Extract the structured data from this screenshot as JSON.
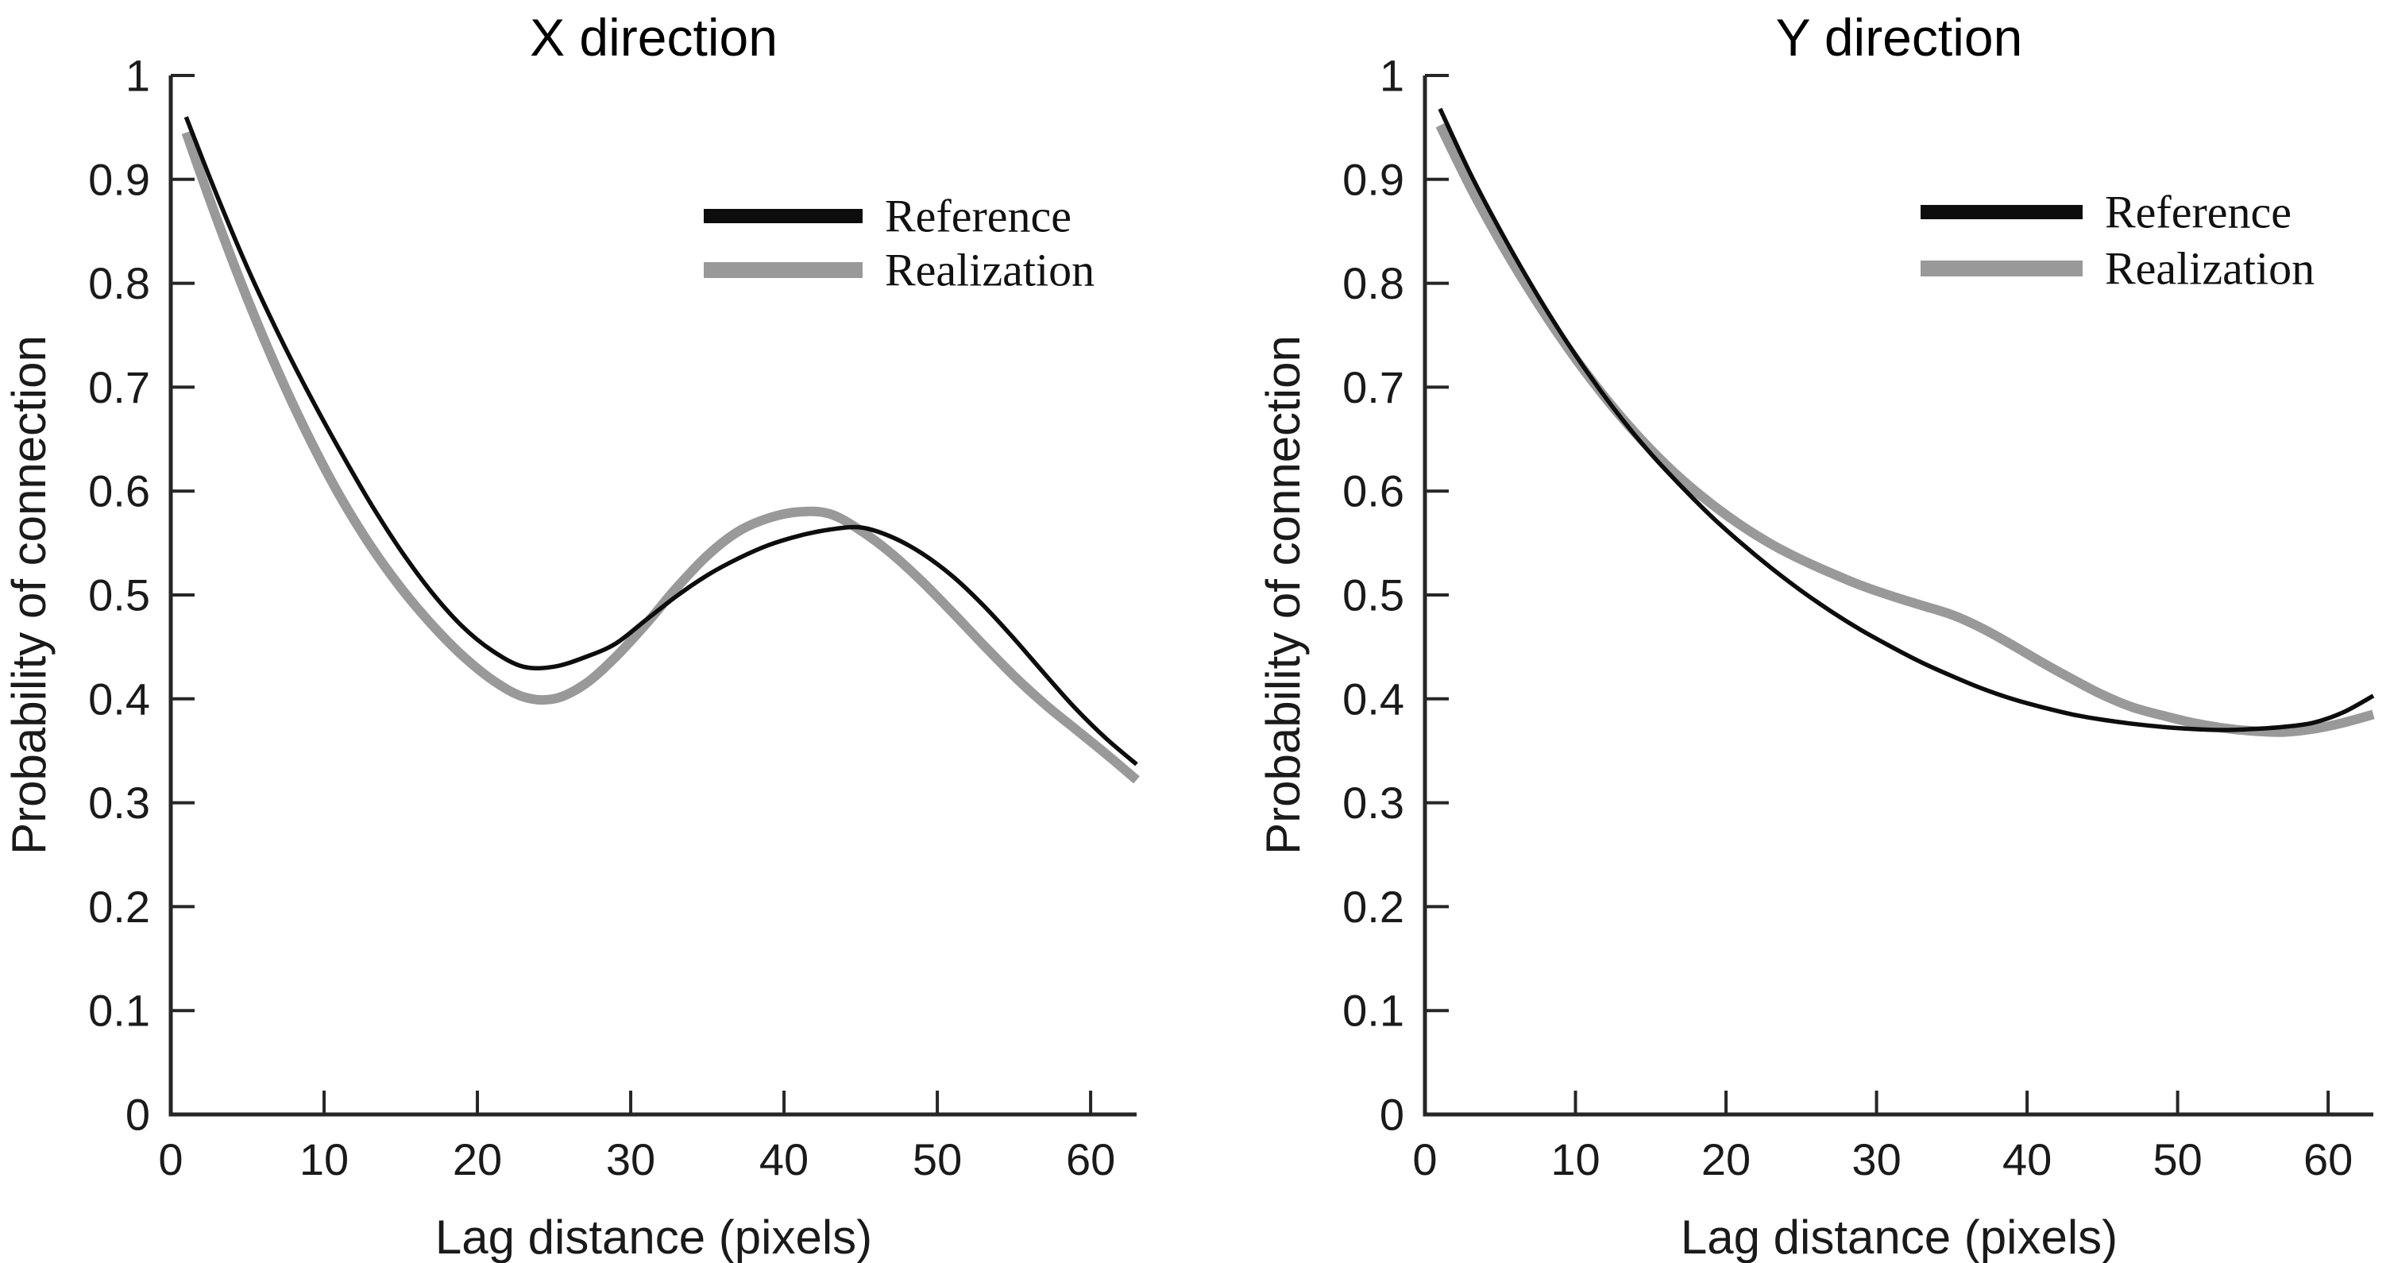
{
  "figure": {
    "background": "#ffffff",
    "axis_color": "#262626",
    "tick_label_color": "#1a1a1a"
  },
  "chart_data": [
    {
      "type": "line",
      "title": "X direction",
      "xlabel": "Lag distance (pixels)",
      "ylabel": "Probability of connection",
      "xlim": [
        0,
        63
      ],
      "ylim": [
        0,
        1
      ],
      "xticks": [
        0,
        10,
        20,
        30,
        40,
        50,
        60
      ],
      "yticks": [
        0,
        0.1,
        0.2,
        0.3,
        0.4,
        0.5,
        0.6,
        0.7,
        0.8,
        0.9,
        1
      ],
      "grid": false,
      "legend_position": "inside-upper-right",
      "series": [
        {
          "name": "Reference",
          "color": "#0d0d0d",
          "line_width": 5.5,
          "x": [
            1,
            3,
            5,
            7,
            9,
            11,
            13,
            15,
            17,
            19,
            21,
            23,
            25,
            27,
            29,
            31,
            33,
            35,
            37,
            39,
            41,
            43,
            45,
            47,
            49,
            51,
            53,
            55,
            57,
            59,
            61,
            63
          ],
          "y": [
            0.96,
            0.885,
            0.815,
            0.752,
            0.694,
            0.64,
            0.589,
            0.543,
            0.503,
            0.47,
            0.446,
            0.431,
            0.431,
            0.44,
            0.453,
            0.476,
            0.499,
            0.519,
            0.535,
            0.548,
            0.557,
            0.563,
            0.565,
            0.556,
            0.54,
            0.518,
            0.49,
            0.458,
            0.424,
            0.391,
            0.362,
            0.337
          ]
        },
        {
          "name": "Realization",
          "color": "#999999",
          "line_width": 12,
          "x": [
            1,
            3,
            5,
            7,
            9,
            11,
            13,
            15,
            17,
            19,
            21,
            23,
            25,
            27,
            29,
            31,
            33,
            35,
            37,
            39,
            41,
            43,
            45,
            47,
            49,
            51,
            53,
            55,
            57,
            59,
            61,
            63
          ],
          "y": [
            0.945,
            0.862,
            0.785,
            0.715,
            0.652,
            0.596,
            0.548,
            0.507,
            0.472,
            0.442,
            0.418,
            0.402,
            0.4,
            0.414,
            0.44,
            0.472,
            0.507,
            0.538,
            0.561,
            0.574,
            0.58,
            0.578,
            0.562,
            0.54,
            0.513,
            0.483,
            0.452,
            0.422,
            0.395,
            0.371,
            0.347,
            0.322
          ]
        }
      ]
    },
    {
      "type": "line",
      "title": "Y direction",
      "xlabel": "Lag distance (pixels)",
      "ylabel": "Probability of connection",
      "xlim": [
        0,
        63
      ],
      "ylim": [
        0,
        1
      ],
      "xticks": [
        0,
        10,
        20,
        30,
        40,
        50,
        60
      ],
      "yticks": [
        0,
        0.1,
        0.2,
        0.3,
        0.4,
        0.5,
        0.6,
        0.7,
        0.8,
        0.9,
        1
      ],
      "grid": false,
      "legend_position": "inside-upper-right",
      "series": [
        {
          "name": "Reference",
          "color": "#0d0d0d",
          "line_width": 5.5,
          "x": [
            1,
            3,
            5,
            7,
            9,
            11,
            13,
            15,
            17,
            19,
            21,
            23,
            25,
            27,
            29,
            31,
            33,
            35,
            37,
            39,
            41,
            43,
            45,
            47,
            49,
            51,
            53,
            55,
            57,
            59,
            61,
            63
          ],
          "y": [
            0.968,
            0.906,
            0.851,
            0.8,
            0.753,
            0.71,
            0.671,
            0.636,
            0.605,
            0.576,
            0.55,
            0.526,
            0.504,
            0.484,
            0.466,
            0.45,
            0.435,
            0.422,
            0.41,
            0.4,
            0.392,
            0.385,
            0.38,
            0.376,
            0.373,
            0.371,
            0.37,
            0.371,
            0.373,
            0.377,
            0.387,
            0.403
          ]
        },
        {
          "name": "Realization",
          "color": "#999999",
          "line_width": 12,
          "x": [
            1,
            3,
            5,
            7,
            9,
            11,
            13,
            15,
            17,
            19,
            21,
            23,
            25,
            27,
            29,
            31,
            33,
            35,
            37,
            39,
            41,
            43,
            45,
            47,
            49,
            51,
            53,
            55,
            57,
            59,
            61,
            63
          ],
          "y": [
            0.952,
            0.893,
            0.84,
            0.792,
            0.748,
            0.708,
            0.672,
            0.64,
            0.612,
            0.588,
            0.567,
            0.549,
            0.534,
            0.521,
            0.509,
            0.499,
            0.49,
            0.481,
            0.468,
            0.452,
            0.435,
            0.419,
            0.404,
            0.392,
            0.384,
            0.377,
            0.372,
            0.369,
            0.368,
            0.371,
            0.377,
            0.385
          ]
        }
      ]
    }
  ]
}
